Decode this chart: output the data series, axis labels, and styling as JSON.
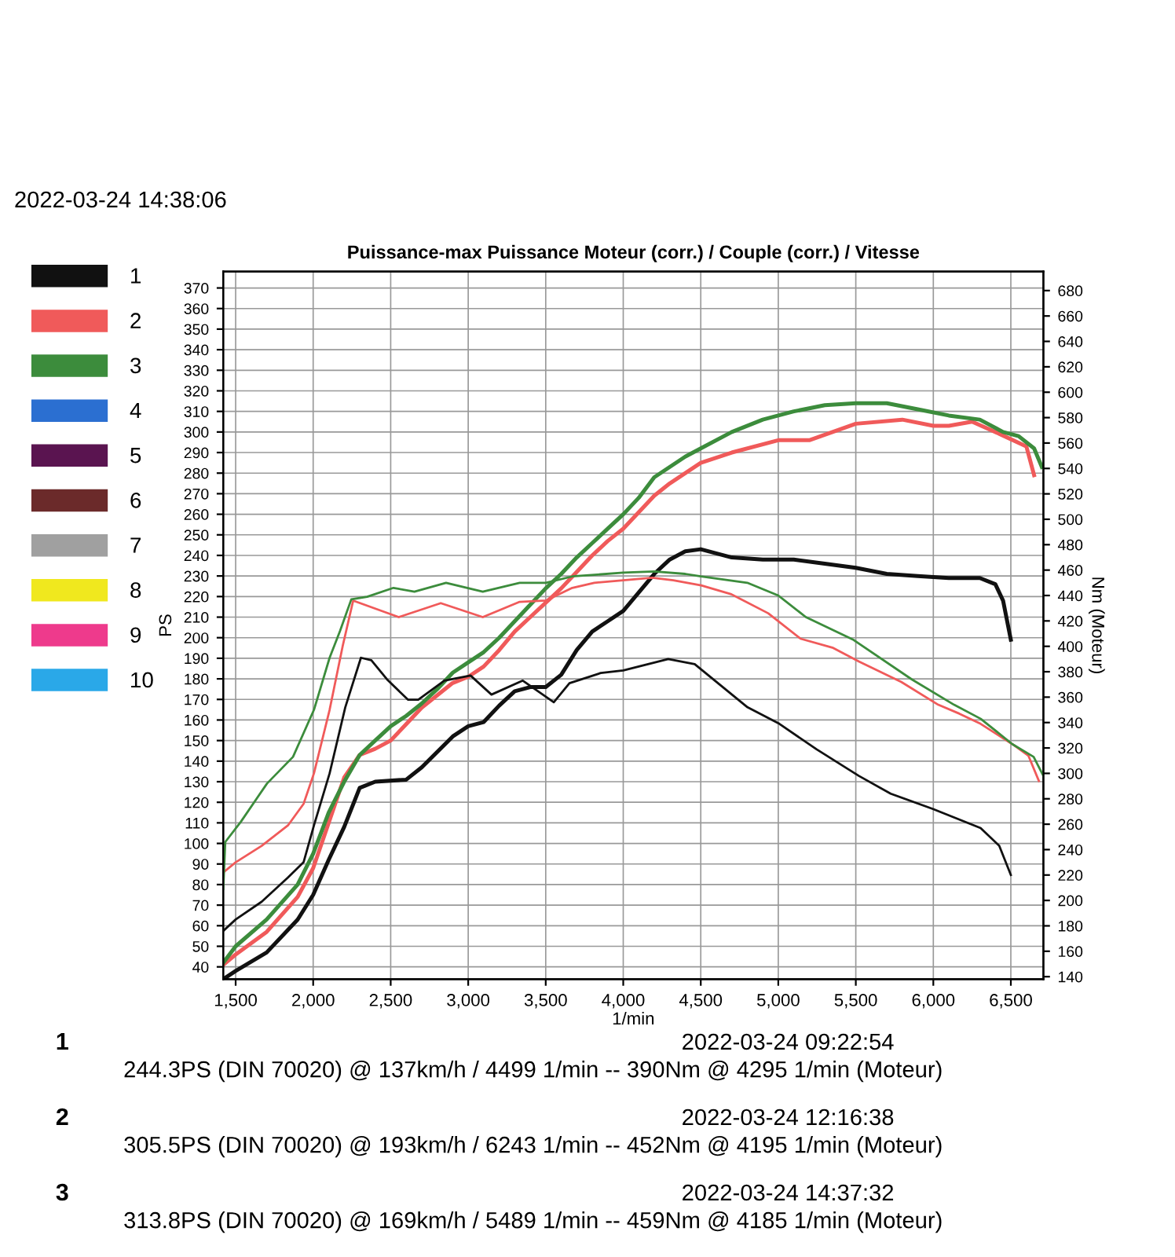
{
  "chart_data": {
    "type": "line",
    "title": "Puissance-max Puissance Moteur (corr.) / Couple (corr.) / Vitesse",
    "xlabel": "1/min",
    "ylabel": "PS",
    "y2label": "Nm (Moteur)",
    "xlim": [
      1420,
      6710
    ],
    "xticks": [
      {
        "value": 1500,
        "label": "1,500"
      },
      {
        "value": 2000,
        "label": "2,000"
      },
      {
        "value": 2500,
        "label": "2,500"
      },
      {
        "value": 3000,
        "label": "3,000"
      },
      {
        "value": 3500,
        "label": "3,500"
      },
      {
        "value": 4000,
        "label": "4,000"
      },
      {
        "value": 4500,
        "label": "4,500"
      },
      {
        "value": 5000,
        "label": "5,000"
      },
      {
        "value": 5500,
        "label": "5,500"
      },
      {
        "value": 6000,
        "label": "6,000"
      },
      {
        "value": 6500,
        "label": "6,500"
      }
    ],
    "ylim": [
      34,
      378
    ],
    "yticks": [
      40,
      50,
      60,
      70,
      80,
      90,
      100,
      110,
      120,
      130,
      140,
      150,
      160,
      170,
      180,
      190,
      200,
      210,
      220,
      230,
      240,
      250,
      260,
      270,
      280,
      290,
      300,
      310,
      320,
      330,
      340,
      350,
      360,
      370
    ],
    "y2lim": [
      138,
      695
    ],
    "y2ticks": [
      140,
      160,
      180,
      200,
      220,
      240,
      260,
      280,
      300,
      320,
      340,
      360,
      380,
      400,
      420,
      440,
      460,
      480,
      500,
      520,
      540,
      560,
      580,
      600,
      620,
      640,
      660,
      680
    ],
    "grid": true,
    "legend": "left",
    "line_style": "solid",
    "marker": "none",
    "series": [
      {
        "name": "1",
        "color": "#111111",
        "x": [
          1420,
          1500,
          1700,
          1900,
          2000,
          2100,
          2200,
          2300,
          2400,
          2600,
          2700,
          2900,
          3000,
          3100,
          3200,
          3300,
          3400,
          3500,
          3600,
          3700,
          3800,
          3900,
          4000,
          4100,
          4200,
          4300,
          4400,
          4500,
          4700,
          4900,
          5100,
          5300,
          5500,
          5700,
          5900,
          6100,
          6300,
          6400,
          6450,
          6500
        ],
        "values": [
          34,
          38,
          47,
          63,
          75,
          92,
          108,
          127,
          130,
          131,
          137,
          152,
          157,
          159,
          167,
          174,
          176,
          176,
          182,
          194,
          203,
          208,
          213,
          222,
          231,
          238,
          242,
          243,
          239,
          238,
          238,
          236,
          234,
          231,
          230,
          229,
          229,
          226,
          218,
          199
        ]
      },
      {
        "color": "#111111",
        "axis": "y2",
        "x": [
          1420,
          1500,
          1668,
          1837,
          1938,
          2005,
          2106,
          2207,
          2308,
          2375,
          2476,
          2611,
          2678,
          2846,
          3015,
          3150,
          3352,
          3552,
          3653,
          3855,
          4000,
          4290,
          4461,
          4802,
          5007,
          5246,
          5520,
          5725,
          5998,
          6305,
          6425,
          6500
        ],
        "values": [
          176,
          185,
          199,
          218,
          230,
          259,
          300,
          352,
          391,
          389,
          374,
          358,
          358,
          373,
          377,
          362,
          373,
          356,
          371,
          379,
          381,
          390,
          386,
          352,
          339,
          319,
          298,
          284,
          272,
          257,
          243,
          220
        ]
      },
      {
        "name": "2",
        "color": "#f05a5a",
        "x": [
          1420,
          1500,
          1700,
          1900,
          2000,
          2100,
          2200,
          2300,
          2400,
          2500,
          2600,
          2700,
          2800,
          2900,
          3000,
          3100,
          3200,
          3300,
          3400,
          3500,
          3600,
          3700,
          3800,
          3900,
          4000,
          4100,
          4200,
          4300,
          4500,
          4700,
          5000,
          5200,
          5500,
          5800,
          6000,
          6100,
          6250,
          6400,
          6600,
          6650
        ],
        "values": [
          41,
          46,
          57,
          74,
          88,
          110,
          132,
          143,
          146,
          150,
          158,
          166,
          172,
          178,
          181,
          186,
          194,
          203,
          210,
          217,
          224,
          232,
          240,
          247,
          253,
          261,
          269,
          275,
          285,
          290,
          296,
          296,
          304,
          306,
          303,
          303,
          305,
          300,
          293,
          279
        ]
      },
      {
        "color": "#f05a5a",
        "axis": "y2",
        "x": [
          1420,
          1500,
          1668,
          1837,
          1938,
          2005,
          2106,
          2190,
          2258,
          2552,
          2823,
          3094,
          3332,
          3501,
          3671,
          3813,
          4000,
          4187,
          4323,
          4503,
          4697,
          4935,
          5144,
          5349,
          5520,
          5793,
          6032,
          6168,
          6305,
          6510,
          6613,
          6681
        ],
        "values": [
          222,
          230,
          243,
          259,
          276,
          300,
          350,
          400,
          436,
          423,
          434,
          423,
          435,
          436,
          446,
          450,
          452,
          454,
          452,
          448,
          441,
          426,
          406,
          399,
          388,
          372,
          354,
          347,
          339,
          323,
          314,
          294
        ]
      },
      {
        "name": "3",
        "color": "#3c8c3c",
        "x": [
          1420,
          1500,
          1700,
          1900,
          2000,
          2100,
          2200,
          2300,
          2400,
          2500,
          2600,
          2700,
          2800,
          2900,
          3000,
          3100,
          3200,
          3300,
          3400,
          3500,
          3600,
          3700,
          3800,
          3900,
          4000,
          4100,
          4200,
          4400,
          4500,
          4700,
          4900,
          5100,
          5300,
          5500,
          5700,
          5900,
          6100,
          6300,
          6450,
          6550,
          6650,
          6700
        ],
        "values": [
          42,
          50,
          63,
          80,
          95,
          115,
          130,
          143,
          150,
          157,
          162,
          168,
          175,
          183,
          188,
          193,
          200,
          208,
          216,
          224,
          231,
          239,
          246,
          253,
          260,
          268,
          278,
          288,
          292,
          300,
          306,
          310,
          313,
          314,
          314,
          311,
          308,
          306,
          300,
          298,
          292,
          283
        ]
      },
      {
        "color": "#3c8c3c",
        "axis": "y2",
        "x": [
          1420,
          1433,
          1534,
          1702,
          1870,
          2005,
          2106,
          2173,
          2246,
          2348,
          2518,
          2653,
          2857,
          3094,
          3332,
          3501,
          3671,
          4000,
          4200,
          4400,
          4500,
          4800,
          5000,
          5178,
          5486,
          5861,
          6134,
          6305,
          6510,
          6647,
          6710
        ],
        "values": [
          209,
          246,
          262,
          292,
          313,
          350,
          391,
          412,
          437,
          439,
          446,
          443,
          450,
          443,
          450,
          450,
          455,
          458,
          459,
          457,
          455,
          450,
          440,
          423,
          405,
          374,
          354,
          343,
          323,
          313,
          298
        ]
      },
      {
        "name": "4",
        "color": "#2b6fd1"
      },
      {
        "name": "5",
        "color": "#5a1450"
      },
      {
        "name": "6",
        "color": "#6b2a2a"
      },
      {
        "name": "7",
        "color": "#a0a0a0"
      },
      {
        "name": "8",
        "color": "#f0e81e"
      },
      {
        "name": "9",
        "color": "#ee3a8c"
      },
      {
        "name": "10",
        "color": "#2aa8e8"
      }
    ],
    "annotations": [
      "2022-03-24 14:38:06",
      "1",
      "2022-03-24 09:22:54",
      "244.3PS (DIN 70020) @ 137km/h / 4499 1/min -- 390Nm @ 4295 1/min (Moteur)",
      "2",
      "2022-03-24 12:16:38",
      "305.5PS (DIN 70020) @ 193km/h / 6243 1/min -- 452Nm @ 4195 1/min (Moteur)",
      "3",
      "2022-03-24 14:37:32",
      "313.8PS (DIN 70020) @ 169km/h / 5489 1/min -- 459Nm @ 4185 1/min (Moteur)"
    ]
  }
}
